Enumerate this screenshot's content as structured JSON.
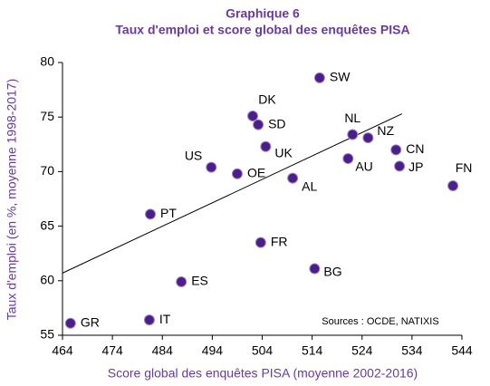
{
  "chart_data": {
    "type": "scatter",
    "title": "Graphique 6",
    "subtitle": "Taux d'emploi et score global des enquêtes PISA",
    "x_label": "Score global des enquêtes PISA (moyenne 2002-2016)",
    "y_label": "Taux d'emploi (en %, moyenne 1998-2017)",
    "annotation": "Sources : OCDE, NATIXIS",
    "color": "#4b1e8c",
    "labels": [
      "GR",
      "IT",
      "ES",
      "PT",
      "US",
      "OE",
      "DK",
      "SD",
      "UK",
      "FR",
      "AL",
      "SW",
      "BG",
      "NL",
      "NZ",
      "AU",
      "CN",
      "JP",
      "FN"
    ],
    "x": [
      465.6,
      481.4,
      487.8,
      481.6,
      493.8,
      499.0,
      502.1,
      503.2,
      504.7,
      503.7,
      510.1,
      515.5,
      514.5,
      522.1,
      525.2,
      521.2,
      530.8,
      531.5,
      542.2
    ],
    "y": [
      56.1,
      56.4,
      59.9,
      66.1,
      70.4,
      69.8,
      75.1,
      74.3,
      72.3,
      63.5,
      69.4,
      78.6,
      61.1,
      73.4,
      73.1,
      71.2,
      72.0,
      70.5,
      68.7
    ],
    "trendline": {
      "x": [
        464,
        532
      ],
      "y": [
        60.7,
        75.3
      ]
    },
    "xlim": [
      464,
      544
    ],
    "xticks": [
      464,
      474,
      484,
      494,
      504,
      514,
      524,
      534,
      544
    ],
    "ylim": [
      55,
      80
    ],
    "yticks": [
      55,
      60,
      65,
      70,
      75,
      80
    ]
  }
}
